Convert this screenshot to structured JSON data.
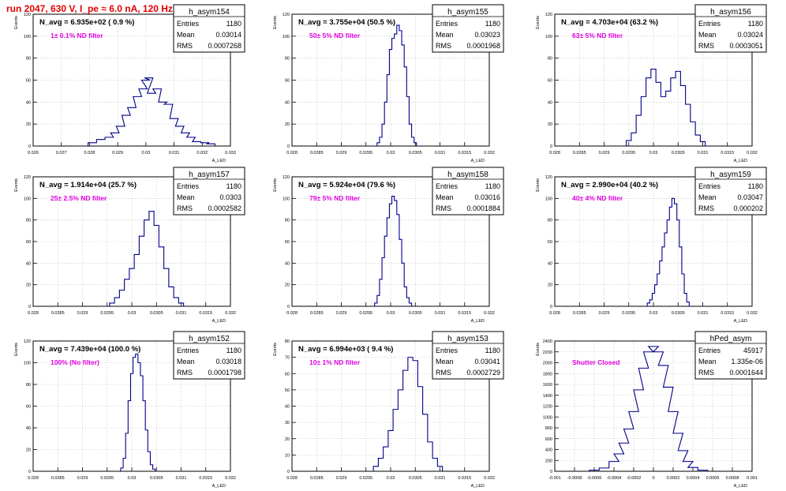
{
  "page": {
    "title": "run 2047,   630 V, I_pe ≈ 6.0 nA, 120 Hz",
    "ylabel": "Events",
    "xlabel": "A_LED"
  },
  "colors": {
    "histogram": "#00008b",
    "annotation": "#e000e0",
    "title": "#e00000",
    "grid": "#b0b0b0",
    "text": "#000000"
  },
  "chart_data": [
    {
      "type": "histogram",
      "name": "h_asym154",
      "headline": "N_avg = 6.935e+02 ( 0.9 %)",
      "note": "1± 0.1% ND filter",
      "stats": [
        [
          "Entries",
          "1180"
        ],
        [
          "Mean",
          "0.03014"
        ],
        [
          "RMS",
          "0.0007268"
        ]
      ],
      "xlim": [
        0.026,
        0.033
      ],
      "ylim": [
        0,
        120
      ],
      "xticks": [
        "0.026",
        "0.027",
        "0.028",
        "0.029",
        "0.03",
        "0.031",
        "0.032",
        "0.033"
      ],
      "yticks": [
        "0",
        "20",
        "40",
        "60",
        "80",
        "100",
        "120"
      ],
      "bins_x": [
        0.0281,
        0.0284,
        0.0287,
        0.0289,
        0.0291,
        0.0293,
        0.0295,
        0.0297,
        0.0299,
        0.03,
        0.0301,
        0.0302,
        0.0304,
        0.0306,
        0.0308,
        0.031,
        0.0312,
        0.0314,
        0.0316,
        0.0318,
        0.0321,
        0.0323
      ],
      "bins_y": [
        3,
        6,
        8,
        12,
        18,
        28,
        35,
        45,
        52,
        60,
        62,
        48,
        52,
        40,
        38,
        25,
        18,
        12,
        8,
        4,
        3,
        2
      ]
    },
    {
      "type": "histogram",
      "name": "h_asym155",
      "headline": "N_avg = 3.755e+04 (50.5 %)",
      "note": "50± 5% ND filter",
      "stats": [
        [
          "Entries",
          "1180"
        ],
        [
          "Mean",
          "0.03023"
        ],
        [
          "RMS",
          "0.0001968"
        ]
      ],
      "xlim": [
        0.028,
        0.032
      ],
      "ylim": [
        0,
        120
      ],
      "xticks": [
        "0.028",
        "0.0285",
        "0.029",
        "0.0295",
        "0.03",
        "0.0305",
        "0.031",
        "0.0315",
        "0.032"
      ],
      "yticks": [
        "0",
        "20",
        "40",
        "60",
        "80",
        "100",
        "120"
      ],
      "bins_x": [
        0.02975,
        0.0298,
        0.02985,
        0.0299,
        0.02995,
        0.03,
        0.03005,
        0.0301,
        0.03015,
        0.0302,
        0.03025,
        0.0303,
        0.03035,
        0.0304,
        0.03045,
        0.0305
      ],
      "bins_y": [
        3,
        8,
        20,
        40,
        65,
        88,
        98,
        102,
        110,
        105,
        92,
        72,
        45,
        20,
        8,
        3
      ]
    },
    {
      "type": "histogram",
      "name": "h_asym156",
      "headline": "N_avg = 4.703e+04 (63.2 %)",
      "note": "63± 5% ND filter",
      "stats": [
        [
          "Entries",
          "1180"
        ],
        [
          "Mean",
          "0.03024"
        ],
        [
          "RMS",
          "0.0003051"
        ]
      ],
      "xlim": [
        0.028,
        0.032
      ],
      "ylim": [
        0,
        120
      ],
      "xticks": [
        "0.028",
        "0.0285",
        "0.029",
        "0.0295",
        "0.03",
        "0.0305",
        "0.031",
        "0.0315",
        "0.032"
      ],
      "yticks": [
        "0",
        "20",
        "40",
        "60",
        "80",
        "100",
        "120"
      ],
      "bins_x": [
        0.0295,
        0.0296,
        0.0297,
        0.0298,
        0.0299,
        0.03,
        0.0301,
        0.0302,
        0.0303,
        0.0304,
        0.0305,
        0.0306,
        0.0307,
        0.0308,
        0.0309,
        0.031
      ],
      "bins_y": [
        5,
        12,
        28,
        45,
        62,
        70,
        58,
        45,
        50,
        62,
        68,
        55,
        38,
        22,
        10,
        4
      ]
    },
    {
      "type": "histogram",
      "name": "h_asym157",
      "headline": "N_avg = 1.914e+04 (25.7 %)",
      "note": "25± 2.5% ND filter",
      "stats": [
        [
          "Entries",
          "1180"
        ],
        [
          "Mean",
          "0.0303"
        ],
        [
          "RMS",
          "0.0002582"
        ]
      ],
      "xlim": [
        0.028,
        0.032
      ],
      "ylim": [
        0,
        120
      ],
      "xticks": [
        "0.028",
        "0.0285",
        "0.029",
        "0.0295",
        "0.03",
        "0.0305",
        "0.031",
        "0.0315",
        "0.032"
      ],
      "yticks": [
        "0",
        "20",
        "40",
        "60",
        "80",
        "100",
        "120"
      ],
      "bins_x": [
        0.0296,
        0.0297,
        0.0298,
        0.0299,
        0.03,
        0.0301,
        0.0302,
        0.0303,
        0.0304,
        0.0305,
        0.0306,
        0.0307,
        0.0308,
        0.0309,
        0.031
      ],
      "bins_y": [
        3,
        8,
        15,
        25,
        35,
        48,
        65,
        80,
        88,
        75,
        55,
        35,
        18,
        8,
        3
      ]
    },
    {
      "type": "histogram",
      "name": "h_asym158",
      "headline": "N_avg = 5.924e+04 (79.6 %)",
      "note": "79± 5% ND filter",
      "stats": [
        [
          "Entries",
          "1180"
        ],
        [
          "Mean",
          "0.03016"
        ],
        [
          "RMS",
          "0.0001884"
        ]
      ],
      "xlim": [
        0.028,
        0.032
      ],
      "ylim": [
        0,
        120
      ],
      "xticks": [
        "0.028",
        "0.0285",
        "0.029",
        "0.0295",
        "0.03",
        "0.0305",
        "0.031",
        "0.0315",
        "0.032"
      ],
      "yticks": [
        "0",
        "20",
        "40",
        "60",
        "80",
        "100",
        "120"
      ],
      "bins_x": [
        0.0297,
        0.02975,
        0.0298,
        0.02985,
        0.0299,
        0.02995,
        0.03,
        0.03005,
        0.0301,
        0.03015,
        0.0302,
        0.03025,
        0.0303,
        0.03035,
        0.0304
      ],
      "bins_y": [
        3,
        10,
        25,
        45,
        65,
        82,
        95,
        102,
        98,
        85,
        62,
        40,
        18,
        8,
        3
      ]
    },
    {
      "type": "histogram",
      "name": "h_asym159",
      "headline": "N_avg = 2.990e+04 (40.2 %)",
      "note": "40± 4% ND filter",
      "stats": [
        [
          "Entries",
          "1180"
        ],
        [
          "Mean",
          "0.03047"
        ],
        [
          "RMS",
          "0.000202"
        ]
      ],
      "xlim": [
        0.028,
        0.032
      ],
      "ylim": [
        0,
        120
      ],
      "xticks": [
        "0.028",
        "0.0285",
        "0.029",
        "0.0295",
        "0.03",
        "0.0305",
        "0.031",
        "0.0315",
        "0.032"
      ],
      "yticks": [
        "0",
        "20",
        "40",
        "60",
        "80",
        "100",
        "120"
      ],
      "bins_x": [
        0.0299,
        0.02995,
        0.03,
        0.03005,
        0.0301,
        0.03015,
        0.0302,
        0.03025,
        0.0303,
        0.03035,
        0.0304,
        0.03045,
        0.0305,
        0.03055,
        0.0306,
        0.03065,
        0.0307
      ],
      "bins_y": [
        3,
        6,
        12,
        20,
        30,
        42,
        55,
        68,
        80,
        92,
        100,
        95,
        80,
        55,
        30,
        12,
        4
      ]
    },
    {
      "type": "histogram",
      "name": "h_asym152",
      "headline": "N_avg = 7.439e+04 (100.0 %)",
      "note": "100% (No filter)",
      "stats": [
        [
          "Entries",
          "1180"
        ],
        [
          "Mean",
          "0.03018"
        ],
        [
          "RMS",
          "0.0001798"
        ]
      ],
      "xlim": [
        0.028,
        0.032
      ],
      "ylim": [
        0,
        120
      ],
      "xticks": [
        "0.028",
        "0.0285",
        "0.029",
        "0.0295",
        "0.03",
        "0.0305",
        "0.031",
        "0.0315",
        "0.032"
      ],
      "yticks": [
        "0",
        "20",
        "40",
        "60",
        "80",
        "100",
        "120"
      ],
      "bins_x": [
        0.0298,
        0.02985,
        0.0299,
        0.02995,
        0.03,
        0.03005,
        0.0301,
        0.03015,
        0.0302,
        0.03025,
        0.0303,
        0.03035,
        0.0304,
        0.03045
      ],
      "bins_y": [
        3,
        12,
        35,
        65,
        90,
        105,
        108,
        100,
        88,
        65,
        38,
        18,
        6,
        2
      ]
    },
    {
      "type": "histogram",
      "name": "h_asym153",
      "headline": "N_avg = 6.994e+03 ( 9.4 %)",
      "note": "10± 1% ND filter",
      "stats": [
        [
          "Entries",
          "1180"
        ],
        [
          "Mean",
          "0.03041"
        ],
        [
          "RMS",
          "0.0002729"
        ]
      ],
      "xlim": [
        0.028,
        0.032
      ],
      "ylim": [
        0,
        80
      ],
      "xticks": [
        "0.028",
        "0.0285",
        "0.029",
        "0.0295",
        "0.03",
        "0.0305",
        "0.031",
        "0.0315",
        "0.032"
      ],
      "yticks": [
        "0",
        "10",
        "20",
        "30",
        "40",
        "50",
        "60",
        "70",
        "80"
      ],
      "bins_x": [
        0.0297,
        0.0298,
        0.0299,
        0.03,
        0.0301,
        0.0302,
        0.0303,
        0.0304,
        0.0305,
        0.0306,
        0.0307,
        0.0308,
        0.0309,
        0.031
      ],
      "bins_y": [
        3,
        8,
        15,
        25,
        38,
        50,
        62,
        70,
        68,
        52,
        35,
        18,
        8,
        3
      ]
    },
    {
      "type": "histogram",
      "name": "hPed_asym",
      "headline": "",
      "note": "Shutter Closed",
      "stats": [
        [
          "Entries",
          "45917"
        ],
        [
          "Mean",
          "1.335e-06"
        ],
        [
          "RMS",
          "0.0001644"
        ]
      ],
      "xlim": [
        -0.001,
        0.001
      ],
      "ylim": [
        0,
        2400
      ],
      "xticks": [
        "-0.001",
        "-0.0008",
        "-0.0006",
        "-0.0004",
        "-0.0002",
        "0",
        "0.0002",
        "0.0004",
        "0.0006",
        "0.0008",
        "0.001"
      ],
      "yticks": [
        "0",
        "200",
        "400",
        "600",
        "800",
        "1000",
        "1200",
        "1400",
        "1600",
        "1800",
        "2000",
        "2200",
        "2400"
      ],
      "bins_x": [
        -0.0006,
        -0.0005,
        -0.0004,
        -0.00035,
        -0.0003,
        -0.00025,
        -0.0002,
        -0.00015,
        -0.0001,
        -5e-05,
        0,
        5e-05,
        0.0001,
        0.00015,
        0.0002,
        0.00025,
        0.0003,
        0.00035,
        0.0004,
        0.0005
      ],
      "bins_y": [
        20,
        60,
        180,
        320,
        520,
        780,
        1100,
        1500,
        1900,
        2200,
        2300,
        2200,
        1950,
        1550,
        1100,
        700,
        380,
        180,
        70,
        20
      ]
    }
  ]
}
